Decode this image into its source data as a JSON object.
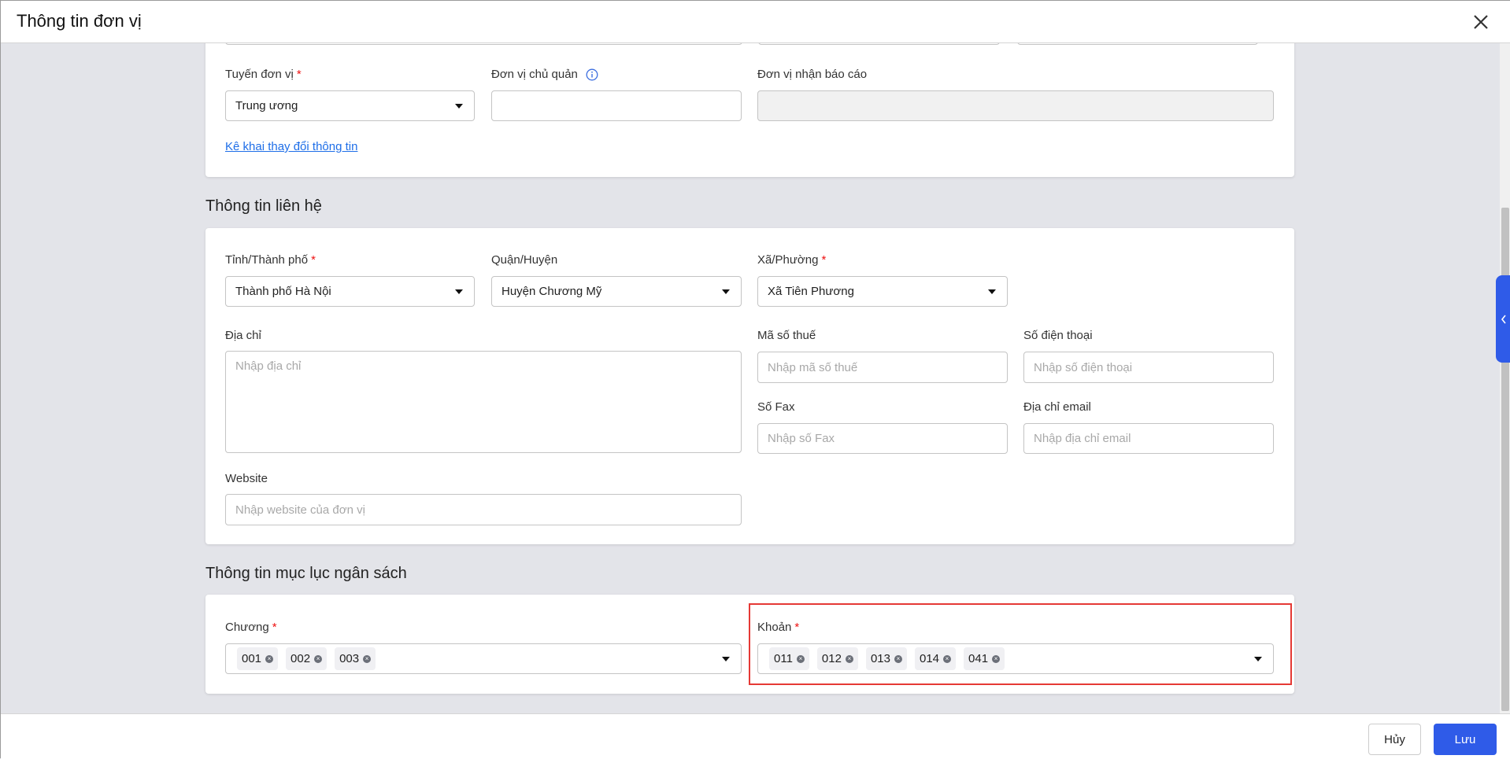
{
  "dialog": {
    "title": "Thông tin đơn vị",
    "close_icon": "close-icon"
  },
  "unit": {
    "tuyen_label": "Tuyến đơn vị",
    "tuyen_value": "Trung ương",
    "chu_quan_label": "Đơn vị chủ quản",
    "nhan_bao_cao_label": "Đơn vị nhận báo cáo",
    "change_link": "Kê khai thay đổi thông tin"
  },
  "contact": {
    "section_title": "Thông tin liên hệ",
    "tinh_label": "Tỉnh/Thành phố",
    "tinh_value": "Thành phố Hà Nội",
    "quan_label": "Quận/Huyện",
    "quan_value": "Huyện Chương Mỹ",
    "xa_label": "Xã/Phường",
    "xa_value": "Xã Tiên Phương",
    "dia_chi_label": "Địa chỉ",
    "dia_chi_placeholder": "Nhập địa chỉ",
    "mst_label": "Mã số thuế",
    "mst_placeholder": "Nhập mã số thuế",
    "sdt_label": "Số điện thoại",
    "sdt_placeholder": "Nhập số điện thoại",
    "fax_label": "Số Fax",
    "fax_placeholder": "Nhập số Fax",
    "email_label": "Địa chỉ email",
    "email_placeholder": "Nhập địa chỉ email",
    "website_label": "Website",
    "website_placeholder": "Nhập website của đơn vị"
  },
  "budget": {
    "section_title": "Thông tin mục lục ngân sách",
    "chuong_label": "Chương",
    "chuong_tags": [
      "001",
      "002",
      "003"
    ],
    "khoan_label": "Khoản",
    "khoan_tags": [
      "011",
      "012",
      "013",
      "014",
      "041"
    ]
  },
  "footer": {
    "cancel": "Hủy",
    "save": "Lưu"
  },
  "colors": {
    "primary": "#2f5be8",
    "required": "#ee1111",
    "highlight": "#e53935"
  }
}
